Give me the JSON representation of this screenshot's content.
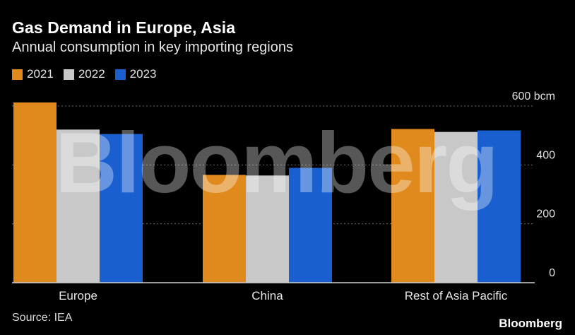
{
  "header": {
    "title": "Gas Demand in Europe, Asia",
    "subtitle": "Annual consumption in key importing regions"
  },
  "footer": {
    "source": "Source: IEA",
    "brand": "Bloomberg"
  },
  "watermark": "Bloomberg",
  "chart_data": {
    "type": "bar",
    "title": "Gas Demand in Europe, Asia",
    "subtitle": "Annual consumption in key importing regions",
    "categories": [
      "Europe",
      "China",
      "Rest of Asia Pacific"
    ],
    "series": [
      {
        "name": "2021",
        "color": "#e08a1e",
        "values": [
          612,
          366,
          522
        ]
      },
      {
        "name": "2022",
        "color": "#c8c8c8",
        "values": [
          520,
          364,
          512
        ]
      },
      {
        "name": "2023",
        "color": "#1a5fd0",
        "values": [
          505,
          390,
          517
        ]
      }
    ],
    "yticks": [
      {
        "value": 0,
        "label": "0"
      },
      {
        "value": 200,
        "label": "200"
      },
      {
        "value": 400,
        "label": "400"
      },
      {
        "value": 600,
        "label": "600 bcm"
      }
    ],
    "ylim": [
      0,
      600
    ],
    "yunit": "bcm",
    "grid": true,
    "legend": "top-left"
  }
}
